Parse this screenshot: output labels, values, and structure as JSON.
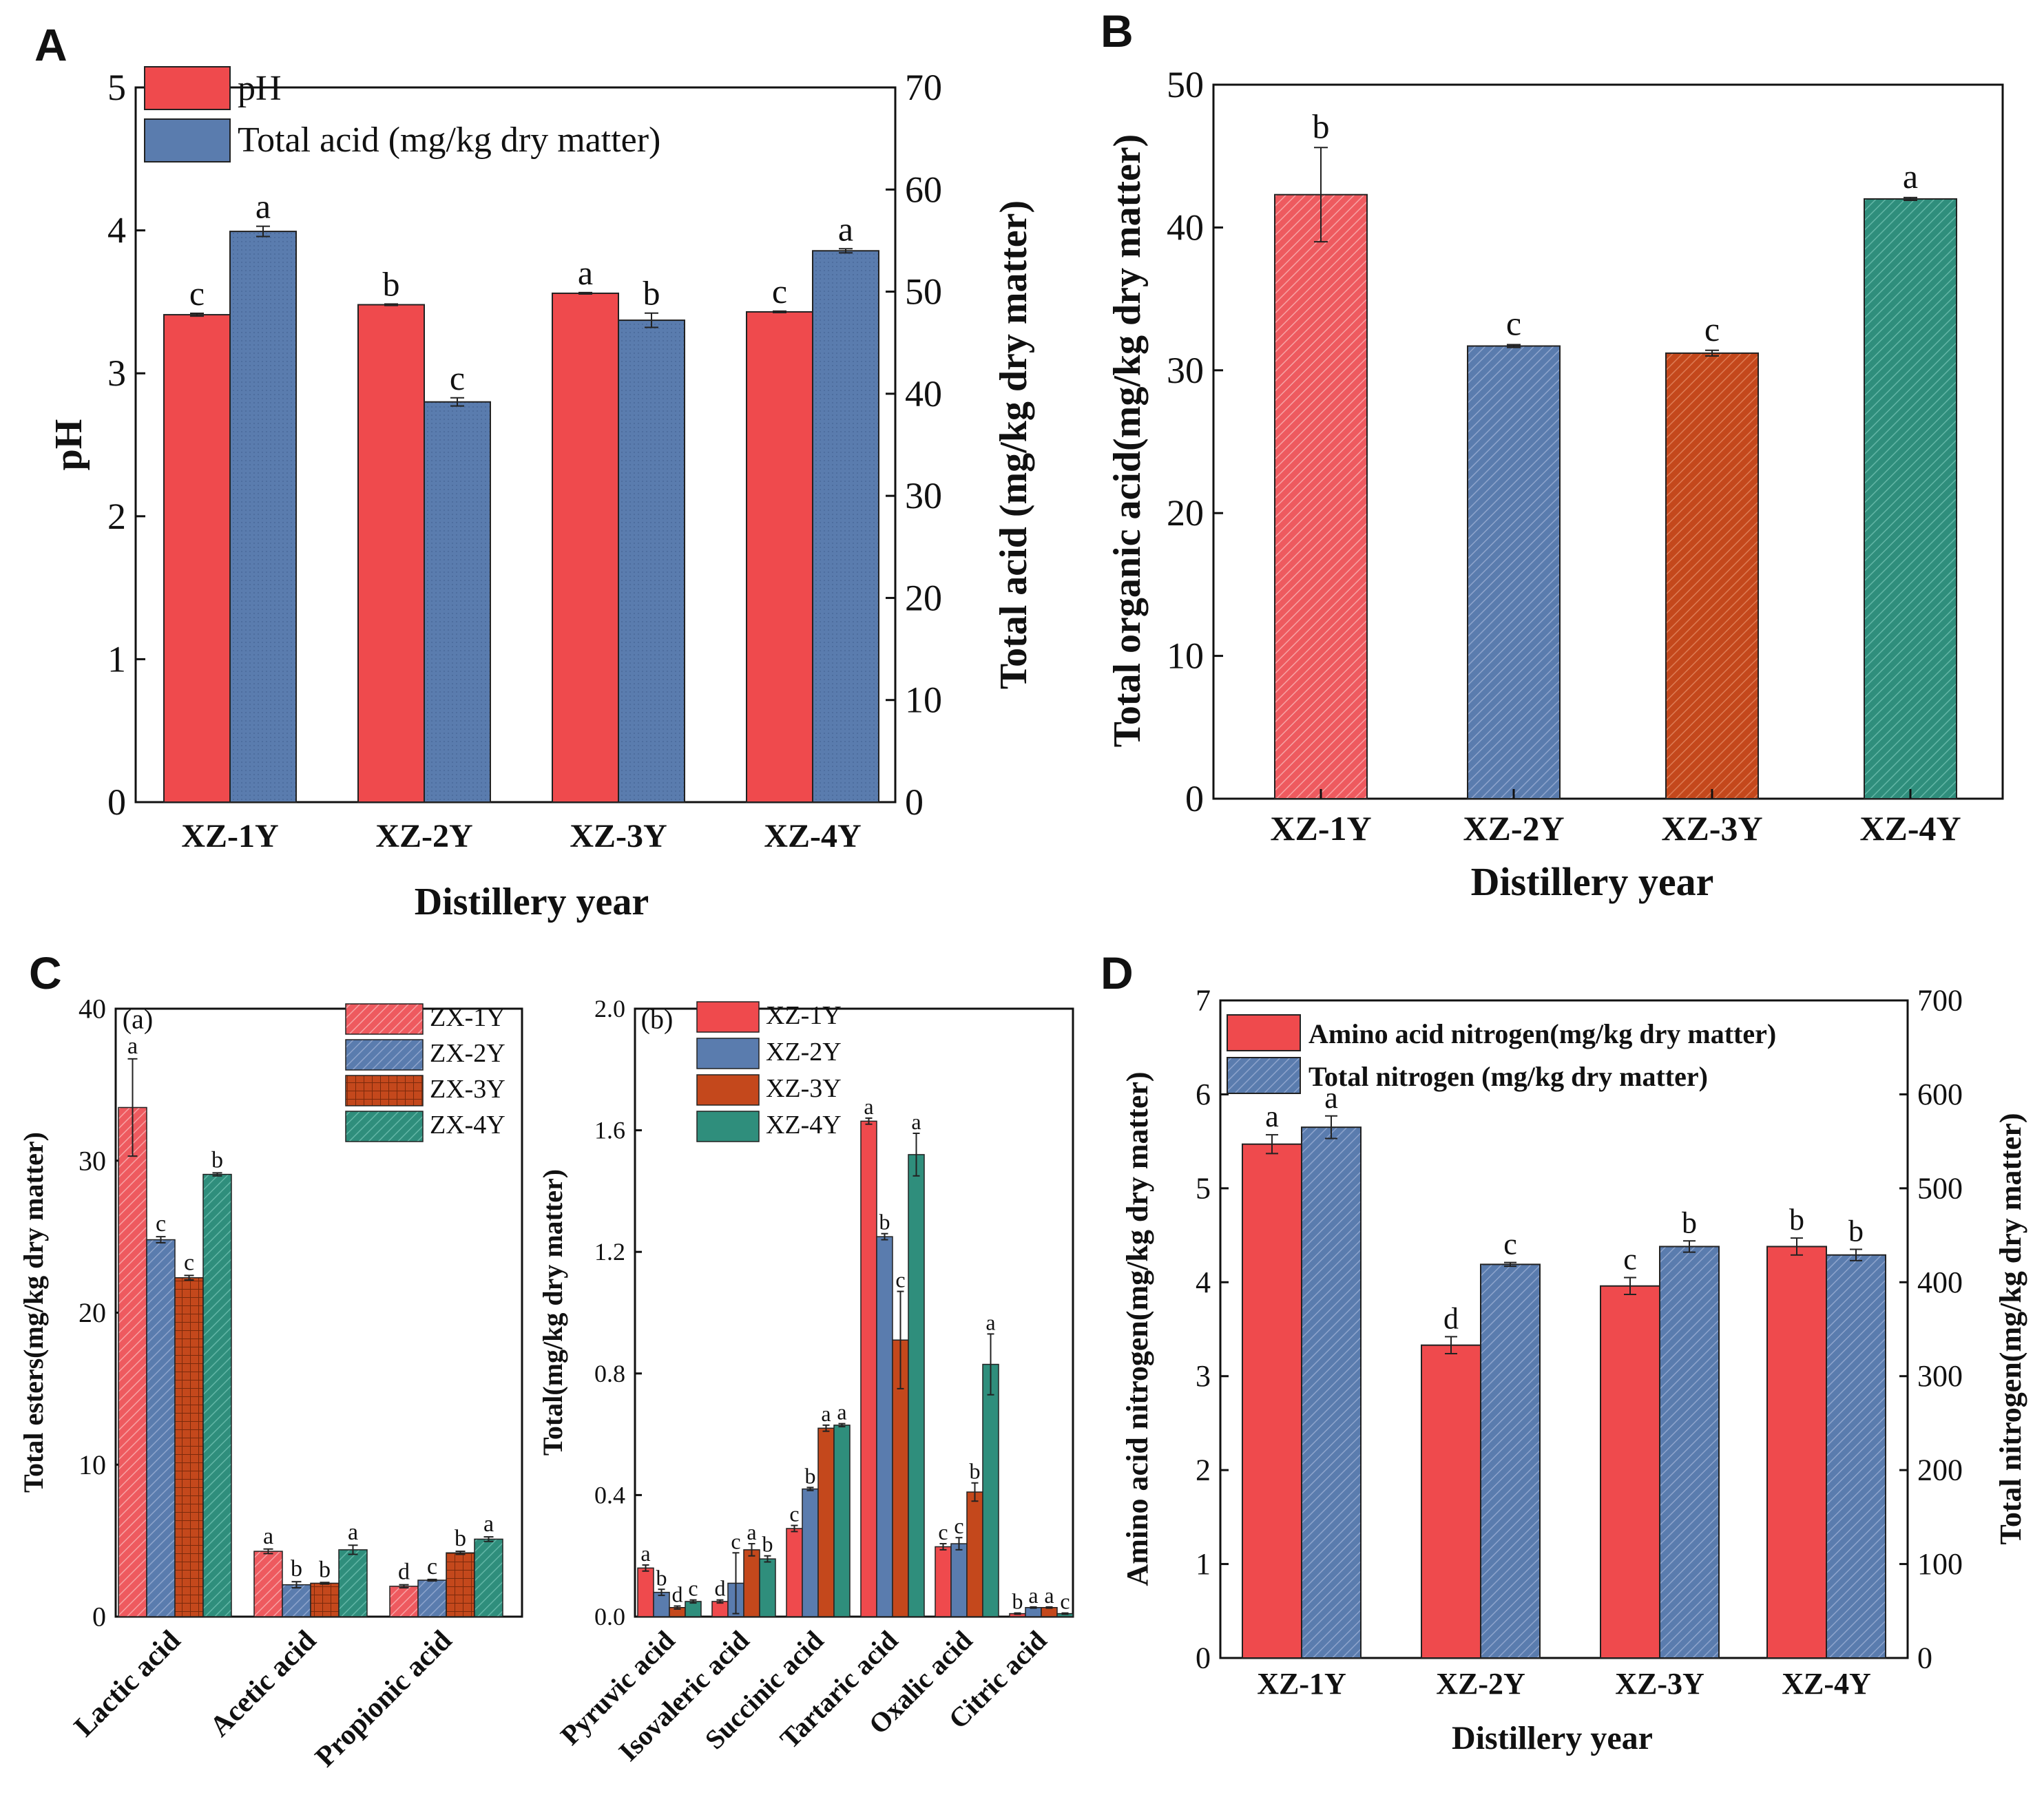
{
  "panels": {
    "A": {
      "label": "A"
    },
    "B": {
      "label": "B"
    },
    "C": {
      "label": "C"
    },
    "D": {
      "label": "D"
    }
  },
  "colors": {
    "red": "#ef4a4d",
    "blue": "#5a7cae",
    "orange": "#c4481c",
    "teal": "#2f8e7c",
    "redLight": "#ee5a5f",
    "blueLight": "#6783b8"
  },
  "chart_data": [
    {
      "panel": "A",
      "type": "bar",
      "categories": [
        "XZ-1Y",
        "XZ-2Y",
        "XZ-3Y",
        "XZ-4Y"
      ],
      "xlabel": "Distillery year",
      "ylabel": "pH",
      "ylabel_right": "Total acid (mg/kg dry matter)",
      "ylim": [
        0,
        5
      ],
      "ylim_right": [
        0,
        70
      ],
      "yticks": [
        "0",
        "1",
        "2",
        "3",
        "4",
        "5"
      ],
      "yticks_right": [
        "0",
        "10",
        "20",
        "30",
        "40",
        "50",
        "60",
        "70"
      ],
      "legend_position": "top-left",
      "series": [
        {
          "name": "pH",
          "axis": "left",
          "color": "#ef4a4d",
          "values": [
            3.41,
            3.48,
            3.56,
            3.43
          ],
          "errors": [
            0.01,
            0.005,
            0.005,
            0.005
          ],
          "letters": [
            "c",
            "b",
            "a",
            "c"
          ]
        },
        {
          "name": "Total acid (mg/kg dry matter)",
          "axis": "right",
          "color": "#5a7cae",
          "values": [
            55.9,
            39.2,
            47.2,
            54.0
          ],
          "errors": [
            0.5,
            0.4,
            0.7,
            0.2
          ],
          "letters": [
            "a",
            "c",
            "b",
            "a"
          ]
        }
      ]
    },
    {
      "panel": "B",
      "type": "bar",
      "categories": [
        "XZ-1Y",
        "XZ-2Y",
        "XZ-3Y",
        "XZ-4Y"
      ],
      "xlabel": "Distillery year",
      "ylabel": "Total organic acid(mg/kg dry matter)",
      "ylim": [
        0,
        50
      ],
      "yticks": [
        "0",
        "10",
        "20",
        "30",
        "40",
        "50"
      ],
      "values": [
        42.3,
        31.7,
        31.2,
        42.0
      ],
      "errors": [
        3.3,
        0.1,
        0.2,
        0.1
      ],
      "letters": [
        "b",
        "c",
        "c",
        "a"
      ],
      "colors": [
        "#ee5a5f",
        "#6783b8",
        "#c4481c",
        "#2f8e7c"
      ]
    },
    {
      "panel": "C(a)",
      "type": "bar",
      "subtitle": "(a)",
      "categories": [
        "Lactic acid",
        "Acetic acid",
        "Propionic acid"
      ],
      "ylabel": "Total esters(mg/kg dry matter)",
      "ylim": [
        0,
        40
      ],
      "yticks": [
        "0",
        "10",
        "20",
        "30",
        "40"
      ],
      "legend_position": "top-right",
      "series": [
        {
          "name": "ZX-1Y",
          "color": "#ef4a4d",
          "values": [
            33.5,
            4.3,
            2.0
          ],
          "errors": [
            3.2,
            0.15,
            0.1
          ],
          "letters": [
            "a",
            "a",
            "d"
          ]
        },
        {
          "name": "ZX-2Y",
          "color": "#5a7cae",
          "values": [
            24.8,
            2.1,
            2.4
          ],
          "errors": [
            0.2,
            0.2,
            0.05
          ],
          "letters": [
            "c",
            "b",
            "c"
          ]
        },
        {
          "name": "ZX-3Y",
          "color": "#c4481c",
          "values": [
            22.3,
            2.2,
            4.2
          ],
          "errors": [
            0.15,
            0.05,
            0.1
          ],
          "letters": [
            "c",
            "b",
            "b"
          ]
        },
        {
          "name": "ZX-4Y",
          "color": "#2f8e7c",
          "values": [
            29.1,
            4.4,
            5.1
          ],
          "errors": [
            0.1,
            0.3,
            0.15
          ],
          "letters": [
            "b",
            "a",
            "a"
          ]
        }
      ]
    },
    {
      "panel": "C(b)",
      "type": "bar",
      "subtitle": "(b)",
      "categories": [
        "Pyruvic acid",
        "Isovaleric acid",
        "Succinic acid",
        "Tartaric acid",
        "Oxalic acid",
        "Citric acid"
      ],
      "ylabel": "Total(mg/kg dry matter)",
      "ylim": [
        0,
        2.0
      ],
      "yticks": [
        "0.0",
        "0.4",
        "0.8",
        "1.2",
        "1.6",
        "2.0"
      ],
      "legend_position": "top-left",
      "series": [
        {
          "name": "XZ-1Y",
          "color": "#ef4a4d",
          "values": [
            0.16,
            0.05,
            0.29,
            1.63,
            0.23,
            0.01
          ],
          "errors": [
            0.01,
            0.005,
            0.01,
            0.01,
            0.01,
            0.002
          ],
          "letters": [
            "a",
            "d",
            "c",
            "a",
            "c",
            "b"
          ]
        },
        {
          "name": "XZ-2Y",
          "color": "#5a7cae",
          "values": [
            0.08,
            0.11,
            0.42,
            1.25,
            0.24,
            0.03
          ],
          "errors": [
            0.01,
            0.1,
            0.005,
            0.01,
            0.02,
            0.002
          ],
          "letters": [
            "b",
            "c",
            "b",
            "b",
            "c",
            "a"
          ]
        },
        {
          "name": "XZ-3Y",
          "color": "#c4481c",
          "values": [
            0.03,
            0.22,
            0.62,
            0.91,
            0.41,
            0.03
          ],
          "errors": [
            0.005,
            0.02,
            0.01,
            0.16,
            0.03,
            0.002
          ],
          "letters": [
            "d",
            "a",
            "a",
            "c",
            "b",
            "a"
          ]
        },
        {
          "name": "XZ-4Y",
          "color": "#2f8e7c",
          "values": [
            0.05,
            0.19,
            0.63,
            1.52,
            0.83,
            0.01
          ],
          "errors": [
            0.005,
            0.01,
            0.005,
            0.07,
            0.1,
            0.002
          ],
          "letters": [
            "c",
            "b",
            "a",
            "a",
            "a",
            "c"
          ]
        }
      ]
    },
    {
      "panel": "D",
      "type": "bar",
      "categories": [
        "XZ-1Y",
        "XZ-2Y",
        "XZ-3Y",
        "XZ-4Y"
      ],
      "xlabel": "Distillery year",
      "ylabel": "Amino acid nitrogen(mg/kg dry matter)",
      "ylabel_right": "Total nitrogen(mg/kg dry matter)",
      "ylim": [
        0,
        7
      ],
      "ylim_right": [
        0,
        700
      ],
      "yticks": [
        "0",
        "1",
        "2",
        "3",
        "4",
        "5",
        "6",
        "7"
      ],
      "yticks_right": [
        "0",
        "100",
        "200",
        "300",
        "400",
        "500",
        "600",
        "700"
      ],
      "legend_position": "top-left",
      "series": [
        {
          "name": "Amino acid nitrogen(mg/kg dry matter)",
          "axis": "left",
          "color": "#ef4a4d",
          "values": [
            5.47,
            3.33,
            3.96,
            4.38
          ],
          "errors": [
            0.1,
            0.09,
            0.09,
            0.09
          ],
          "letters": [
            "a",
            "d",
            "c",
            "b"
          ]
        },
        {
          "name": "Total nitrogen (mg/kg dry matter)",
          "axis": "right",
          "color": "#5a7cae",
          "values": [
            565,
            419,
            438,
            429
          ],
          "errors": [
            12,
            2,
            6,
            6
          ],
          "letters": [
            "a",
            "c",
            "b",
            "b"
          ]
        }
      ]
    }
  ]
}
